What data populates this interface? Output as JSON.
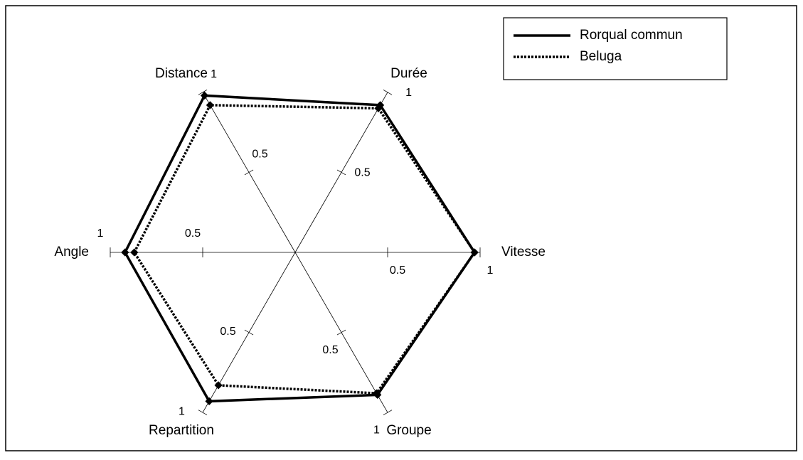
{
  "chart_data": {
    "type": "radar",
    "categories": [
      "Vitesse",
      "Durée",
      "Distance",
      "Angle",
      "Repartition",
      "Groupe"
    ],
    "rlim": [
      0,
      1
    ],
    "rticks": [
      0.5,
      1
    ],
    "legend": "top-right",
    "series": [
      {
        "name": "Rorqual commun",
        "color": "#000000",
        "dash": "solid",
        "values": [
          0.97,
          0.92,
          0.98,
          0.92,
          0.93,
          0.89
        ]
      },
      {
        "name": "Beluga",
        "color": "#000000",
        "dash": "dotted",
        "values": [
          0.97,
          0.9,
          0.92,
          0.87,
          0.83,
          0.88
        ]
      }
    ]
  }
}
